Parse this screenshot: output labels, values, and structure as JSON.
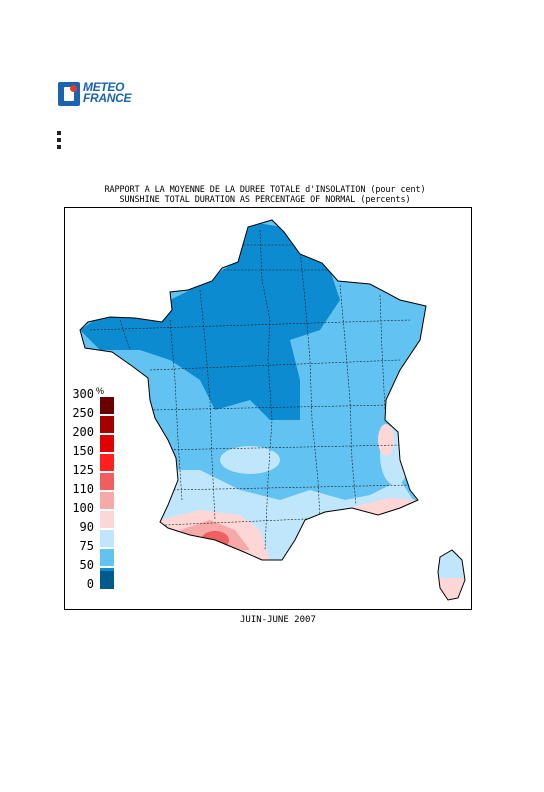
{
  "logo": {
    "line1": "METEO",
    "line2": "FRANCE"
  },
  "title": {
    "line1": "RAPPORT A LA MOYENNE DE LA DUREE TOTALE d'INSOLATION (pour cent)",
    "line2": "SUNSHINE TOTAL DURATION AS PERCENTAGE OF NORMAL (percents)"
  },
  "legend": {
    "unit": "%",
    "items": [
      {
        "label": "300",
        "color": "#6b0000"
      },
      {
        "label": "250",
        "color": "#a40000"
      },
      {
        "label": "200",
        "color": "#e10000"
      },
      {
        "label": "150",
        "color": "#ff2020"
      },
      {
        "label": "125",
        "color": "#f05f5f"
      },
      {
        "label": "110",
        "color": "#f6a9a9"
      },
      {
        "label": "100",
        "color": "#fdd6d6"
      },
      {
        "label": "90",
        "color": "#bfe6fb"
      },
      {
        "label": "75",
        "color": "#62c2f2"
      },
      {
        "label": "50",
        "color": "#0c8bd0"
      },
      {
        "label": "0",
        "color": "#005a8c"
      }
    ]
  },
  "caption": "JUIN-JUNE 2007",
  "colors": {
    "very_low": "#0c8bd0",
    "low": "#62c2f2",
    "mid": "#bfe6fb",
    "pink_light": "#fdd6d6",
    "pink": "#f6a9a9",
    "red": "#f05f5f"
  }
}
